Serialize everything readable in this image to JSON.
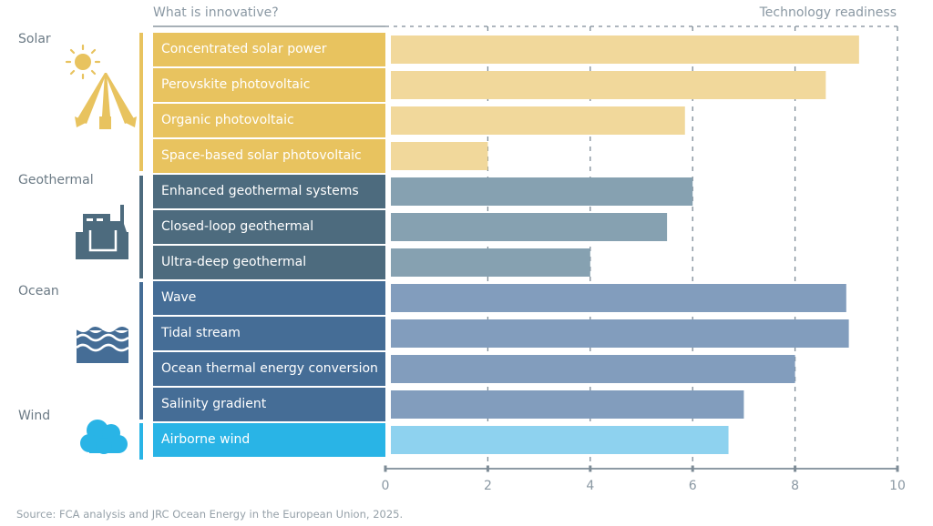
{
  "header": {
    "left_title": "What is innovative?",
    "right_title": "Technology readiness"
  },
  "categories": [
    {
      "name": "Solar",
      "icon": "solar-concentrator-icon",
      "color": "#e8c35f"
    },
    {
      "name": "Geothermal",
      "icon": "geothermal-plant-icon",
      "color": "#4d6b7e"
    },
    {
      "name": "Ocean",
      "icon": "waves-icon",
      "color": "#456d96"
    },
    {
      "name": "Wind",
      "icon": "cloud-icon",
      "color": "#29b4e6"
    }
  ],
  "colors": {
    "solar_cell": "#e8c35f",
    "solar_bar": "#f1d89b",
    "geothermal_cell": "#4d6b7e",
    "geothermal_bar": "#86a1b1",
    "ocean_cell": "#456d96",
    "ocean_bar": "#829dbd",
    "wind_cell": "#29b4e6",
    "wind_bar": "#8ed2ef",
    "grid": "#7d8b96",
    "axis_text": "#8a98a3"
  },
  "chart_data": {
    "type": "bar",
    "orientation": "horizontal",
    "title": "",
    "xlabel": "Technology readiness",
    "ylabel": "What is innovative?",
    "xlim": [
      0,
      10
    ],
    "xticks": [
      0,
      2,
      4,
      6,
      8,
      10
    ],
    "grid": true,
    "categories": [
      "Concentrated solar power",
      "Perovskite photovoltaic",
      "Organic photovoltaic",
      "Space-based solar photovoltaic",
      "Enhanced geothermal systems",
      "Closed-loop geothermal",
      "Ultra-deep geothermal",
      "Wave",
      "Tidal stream",
      "Ocean thermal energy conversion",
      "Salinity gradient",
      "Airborne wind"
    ],
    "groups": [
      "Solar",
      "Solar",
      "Solar",
      "Solar",
      "Geothermal",
      "Geothermal",
      "Geothermal",
      "Ocean",
      "Ocean",
      "Ocean",
      "Ocean",
      "Wind"
    ],
    "values": [
      9.25,
      8.6,
      5.85,
      2.0,
      6.0,
      5.5,
      4.0,
      9.0,
      9.05,
      8.0,
      7.0,
      6.7
    ]
  },
  "source": "Source: FCA analysis and JRC Ocean Energy in the European Union, 2025."
}
